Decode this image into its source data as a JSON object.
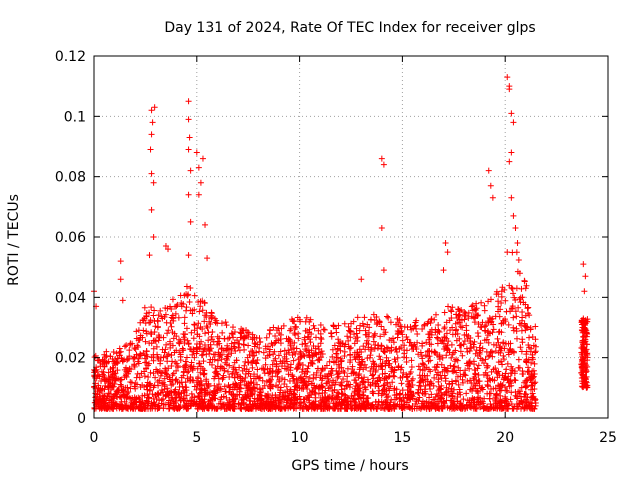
{
  "chart_data": {
    "type": "scatter",
    "title": "Day 131 of 2024, Rate Of TEC Index for receiver glps",
    "xlabel": "GPS time / hours",
    "ylabel": "ROTI / TECUs",
    "xlim": [
      0,
      25
    ],
    "ylim": [
      0,
      0.12
    ],
    "grid": true,
    "marker": "+",
    "color": "#ff0000",
    "x_ticks": [
      0,
      5,
      10,
      15,
      20,
      25
    ],
    "x_tick_labels": [
      "0",
      "5",
      "10",
      "15",
      "20",
      "25"
    ],
    "y_ticks": [
      0,
      0.02,
      0.04,
      0.06,
      0.08,
      0.1,
      0.12
    ],
    "y_tick_labels": [
      "0",
      "0.02",
      "0.04",
      "0.06",
      "0.08",
      "0.1",
      "0.12"
    ],
    "envelope": {
      "description": "approximate upper envelope of the dense point cloud",
      "x": [
        0,
        1,
        2,
        2.5,
        3,
        4,
        4.5,
        5,
        6,
        7,
        8,
        9,
        10,
        11,
        12,
        13,
        14,
        15,
        16,
        17,
        18,
        19,
        20,
        20.5,
        21,
        21.5
      ],
      "y": [
        0.021,
        0.022,
        0.028,
        0.04,
        0.036,
        0.04,
        0.045,
        0.042,
        0.033,
        0.03,
        0.028,
        0.031,
        0.034,
        0.032,
        0.031,
        0.034,
        0.035,
        0.033,
        0.032,
        0.038,
        0.036,
        0.04,
        0.045,
        0.06,
        0.045,
        0.03
      ]
    },
    "notable_points": [
      {
        "x": 0.0,
        "y": 0.042
      },
      {
        "x": 0.1,
        "y": 0.037
      },
      {
        "x": 0.6,
        "y": 0.022
      },
      {
        "x": 1.3,
        "y": 0.052
      },
      {
        "x": 1.3,
        "y": 0.046
      },
      {
        "x": 1.4,
        "y": 0.039
      },
      {
        "x": 2.8,
        "y": 0.102
      },
      {
        "x": 2.85,
        "y": 0.098
      },
      {
        "x": 2.8,
        "y": 0.094
      },
      {
        "x": 2.75,
        "y": 0.089
      },
      {
        "x": 2.8,
        "y": 0.081
      },
      {
        "x": 2.8,
        "y": 0.069
      },
      {
        "x": 2.9,
        "y": 0.06
      },
      {
        "x": 2.7,
        "y": 0.054
      },
      {
        "x": 2.95,
        "y": 0.103
      },
      {
        "x": 2.9,
        "y": 0.078
      },
      {
        "x": 3.5,
        "y": 0.057
      },
      {
        "x": 3.6,
        "y": 0.056
      },
      {
        "x": 4.6,
        "y": 0.105
      },
      {
        "x": 4.6,
        "y": 0.099
      },
      {
        "x": 4.65,
        "y": 0.093
      },
      {
        "x": 4.6,
        "y": 0.089
      },
      {
        "x": 4.7,
        "y": 0.082
      },
      {
        "x": 4.6,
        "y": 0.074
      },
      {
        "x": 4.7,
        "y": 0.065
      },
      {
        "x": 4.6,
        "y": 0.054
      },
      {
        "x": 5.0,
        "y": 0.088
      },
      {
        "x": 5.1,
        "y": 0.083
      },
      {
        "x": 5.2,
        "y": 0.078
      },
      {
        "x": 5.1,
        "y": 0.074
      },
      {
        "x": 5.3,
        "y": 0.086
      },
      {
        "x": 5.4,
        "y": 0.064
      },
      {
        "x": 5.5,
        "y": 0.053
      },
      {
        "x": 14.0,
        "y": 0.086
      },
      {
        "x": 14.1,
        "y": 0.084
      },
      {
        "x": 14.0,
        "y": 0.063
      },
      {
        "x": 13.0,
        "y": 0.046
      },
      {
        "x": 14.1,
        "y": 0.049
      },
      {
        "x": 17.1,
        "y": 0.058
      },
      {
        "x": 17.2,
        "y": 0.055
      },
      {
        "x": 17.0,
        "y": 0.049
      },
      {
        "x": 19.2,
        "y": 0.082
      },
      {
        "x": 19.3,
        "y": 0.077
      },
      {
        "x": 19.4,
        "y": 0.073
      },
      {
        "x": 20.1,
        "y": 0.113
      },
      {
        "x": 20.2,
        "y": 0.11
      },
      {
        "x": 20.2,
        "y": 0.109
      },
      {
        "x": 20.3,
        "y": 0.101
      },
      {
        "x": 20.4,
        "y": 0.098
      },
      {
        "x": 20.3,
        "y": 0.088
      },
      {
        "x": 20.2,
        "y": 0.085
      },
      {
        "x": 20.3,
        "y": 0.073
      },
      {
        "x": 20.4,
        "y": 0.067
      },
      {
        "x": 20.5,
        "y": 0.063
      },
      {
        "x": 20.6,
        "y": 0.058
      },
      {
        "x": 20.1,
        "y": 0.055
      },
      {
        "x": 21.0,
        "y": 0.043
      },
      {
        "x": 23.8,
        "y": 0.051
      },
      {
        "x": 23.9,
        "y": 0.047
      },
      {
        "x": 23.85,
        "y": 0.042
      },
      {
        "x": 23.8,
        "y": 0.033
      },
      {
        "x": 23.85,
        "y": 0.03
      },
      {
        "x": 23.9,
        "y": 0.026
      },
      {
        "x": 23.8,
        "y": 0.018
      },
      {
        "x": 23.85,
        "y": 0.012
      }
    ],
    "dense_segments": [
      {
        "x_start": 0.0,
        "x_end": 21.5,
        "description": "continuous dense cloud between ~0.002 and the envelope"
      },
      {
        "x_start": 23.7,
        "x_end": 24.0,
        "description": "short dense cluster between ~0.01 and ~0.033"
      }
    ]
  }
}
